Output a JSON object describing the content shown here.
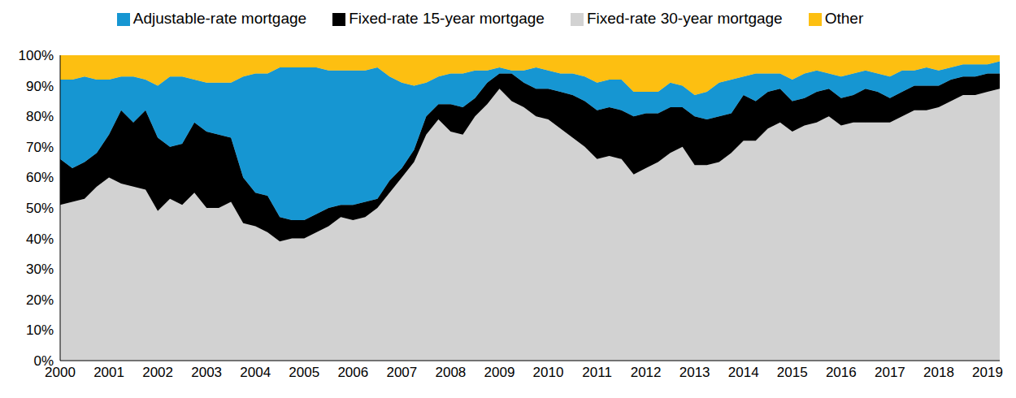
{
  "chart_data": {
    "type": "area",
    "stacked": true,
    "grid": false,
    "legend": "top",
    "categories": [
      "2000",
      null,
      null,
      null,
      "2001",
      null,
      null,
      null,
      "2002",
      null,
      null,
      null,
      "2003",
      null,
      null,
      null,
      "2004",
      null,
      null,
      null,
      "2005",
      null,
      null,
      null,
      "2006",
      null,
      null,
      null,
      "2007",
      null,
      null,
      null,
      "2008",
      null,
      null,
      null,
      "2009",
      null,
      null,
      null,
      "2010",
      null,
      null,
      null,
      "2011",
      null,
      null,
      null,
      "2012",
      null,
      null,
      null,
      "2013",
      null,
      null,
      null,
      "2014",
      null,
      null,
      null,
      "2015",
      null,
      null,
      null,
      "2016",
      null,
      null,
      null,
      "2017",
      null,
      null,
      null,
      "2018",
      null,
      null,
      null,
      "2019",
      null
    ],
    "ylim": [
      0,
      100
    ],
    "yticks": [
      {
        "value": 0,
        "label": "0%"
      },
      {
        "value": 10,
        "label": "10%"
      },
      {
        "value": 20,
        "label": "20%"
      },
      {
        "value": 30,
        "label": "30%"
      },
      {
        "value": 40,
        "label": "40%"
      },
      {
        "value": 50,
        "label": "50%"
      },
      {
        "value": 60,
        "label": "60%"
      },
      {
        "value": 70,
        "label": "70%"
      },
      {
        "value": 80,
        "label": "80%"
      },
      {
        "value": 90,
        "label": "90%"
      },
      {
        "value": 100,
        "label": "100%"
      }
    ],
    "series": [
      {
        "name": "Fixed-rate 30-year mortgage",
        "color": "#d2d2d2",
        "values": [
          51,
          52,
          53,
          57,
          60,
          58,
          57,
          56,
          49,
          53,
          51,
          55,
          50,
          50,
          52,
          45,
          44,
          42,
          39,
          40,
          40,
          42,
          44,
          47,
          46,
          47,
          50,
          55,
          60,
          65,
          74,
          79,
          75,
          74,
          80,
          84,
          89,
          85,
          83,
          80,
          79,
          76,
          73,
          70,
          66,
          67,
          66,
          61,
          63,
          65,
          68,
          70,
          64,
          64,
          65,
          68,
          72,
          72,
          76,
          78,
          75,
          77,
          78,
          80,
          77,
          78,
          78,
          78,
          78,
          80,
          82,
          82,
          83,
          85,
          87,
          87,
          88,
          89
        ]
      },
      {
        "name": "Fixed-rate 15-year mortgage",
        "color": "#000000",
        "values": [
          15,
          11,
          12,
          11,
          14,
          24,
          21,
          26,
          24,
          17,
          20,
          23,
          25,
          24,
          21,
          15,
          11,
          12,
          8,
          6,
          6,
          6,
          6,
          4,
          5,
          5,
          3,
          4,
          3,
          4,
          6,
          5,
          9,
          9,
          6,
          7,
          5,
          9,
          8,
          9,
          10,
          12,
          14,
          15,
          16,
          16,
          16,
          19,
          18,
          16,
          15,
          13,
          16,
          15,
          15,
          13,
          15,
          13,
          12,
          11,
          10,
          9,
          10,
          9,
          9,
          9,
          11,
          10,
          8,
          8,
          8,
          8,
          7,
          7,
          6,
          6,
          6,
          5
        ]
      },
      {
        "name": "Adjustable-rate mortgage",
        "color": "#1696d2",
        "values": [
          26,
          29,
          28,
          24,
          18,
          11,
          15,
          10,
          17,
          23,
          22,
          14,
          16,
          17,
          18,
          33,
          39,
          40,
          49,
          50,
          50,
          48,
          45,
          44,
          44,
          43,
          43,
          34,
          28,
          21,
          11,
          9,
          10,
          11,
          9,
          4,
          2,
          1,
          4,
          7,
          6,
          6,
          7,
          8,
          9,
          9,
          10,
          8,
          7,
          7,
          8,
          7,
          7,
          9,
          11,
          11,
          6,
          9,
          6,
          5,
          7,
          8,
          7,
          5,
          7,
          7,
          6,
          6,
          7,
          7,
          5,
          6,
          5,
          4,
          4,
          4,
          3,
          4
        ]
      },
      {
        "name": "Other",
        "color": "#fdbf11",
        "values": [
          8,
          8,
          7,
          8,
          8,
          7,
          7,
          8,
          10,
          7,
          7,
          8,
          9,
          9,
          9,
          7,
          6,
          6,
          4,
          4,
          4,
          4,
          5,
          5,
          5,
          5,
          4,
          7,
          9,
          10,
          9,
          7,
          6,
          6,
          5,
          5,
          4,
          5,
          5,
          4,
          5,
          6,
          6,
          7,
          9,
          8,
          8,
          12,
          12,
          12,
          9,
          10,
          13,
          12,
          9,
          8,
          7,
          6,
          6,
          6,
          8,
          6,
          5,
          6,
          7,
          6,
          5,
          6,
          7,
          5,
          5,
          4,
          5,
          4,
          3,
          3,
          3,
          2
        ]
      }
    ]
  }
}
